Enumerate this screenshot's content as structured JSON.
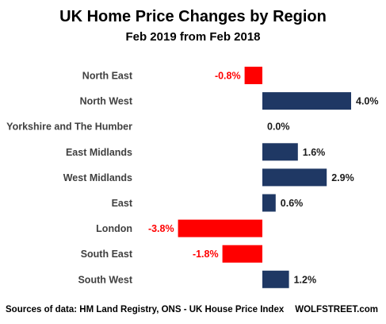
{
  "chart_data": {
    "type": "bar",
    "orientation": "horizontal",
    "title": "UK Home Price Changes by Region",
    "subtitle": "Feb 2019 from Feb 2018",
    "categories": [
      "North East",
      "North West",
      "Yorkshire and The Humber",
      "East Midlands",
      "West Midlands",
      "East",
      "London",
      "South East",
      "South West"
    ],
    "values": [
      -0.8,
      4.0,
      0.0,
      1.6,
      2.9,
      0.6,
      -3.8,
      -1.8,
      1.2
    ],
    "value_labels": [
      "-0.8%",
      "4.0%",
      "0.0%",
      "1.6%",
      "2.9%",
      "0.6%",
      "-3.8%",
      "-1.8%",
      "1.2%"
    ],
    "xlim": [
      -4.0,
      4.3
    ],
    "grid": false,
    "colors": {
      "positive": "#1f3864",
      "negative": "#ff0000",
      "positive_label": "#1a1a1a",
      "negative_label": "#ff0000"
    }
  },
  "footer": {
    "source": "Sources of data: HM Land Registry, ONS - UK House Price Index",
    "brand": "WOLFSTREET.com"
  }
}
